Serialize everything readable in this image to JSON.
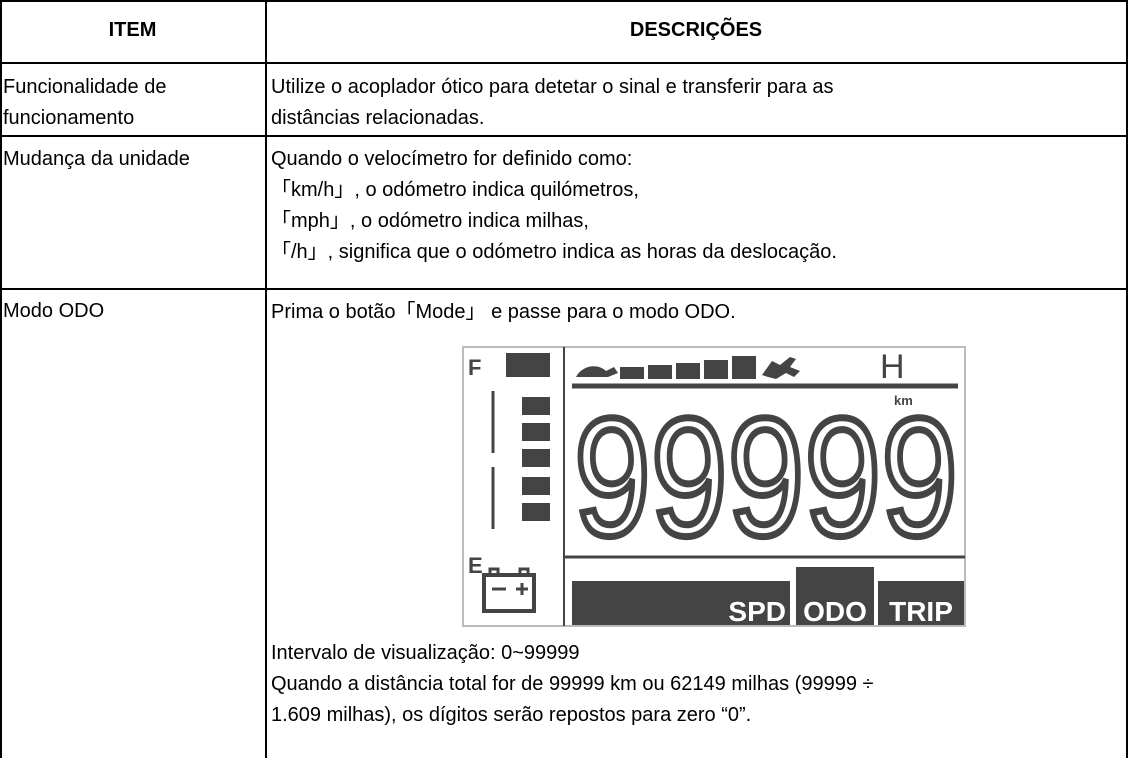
{
  "table": {
    "header": [
      "ITEM",
      "DESCRIÇÕES"
    ],
    "rows": [
      [
        [
          "Funcionalidade de",
          "funcionamento"
        ],
        [
          "Utilize o acoplador ótico para detetar o sinal e transferir para as",
          "distâncias relacionadas."
        ]
      ],
      [
        [
          "Mudança da unidade"
        ],
        [
          "Quando o velocímetro for definido como:",
          "「km/h」, o odómetro indica quilómetros,",
          "「mph」, o odómetro indica milhas,",
          "「/h」, significa que o odómetro indica as horas da deslocação."
        ]
      ],
      [
        [
          "Modo ODO"
        ],
        [
          "Prima o botão「Mode」 e passe para o modo ODO.",
          "Intervalo de visualização: 0~99999",
          "Quando a distância total for de 99999 km ou 62149 milhas (99999 ÷",
          "1.609 milhas), os dígitos serão repostos para zero “0”."
        ]
      ]
    ]
  },
  "display": {
    "fuel_full": "F",
    "fuel_empty": "E",
    "hours": "H",
    "unit": "km",
    "digits": "99999",
    "modes": [
      "SPD",
      "ODO",
      "TRIP"
    ]
  }
}
